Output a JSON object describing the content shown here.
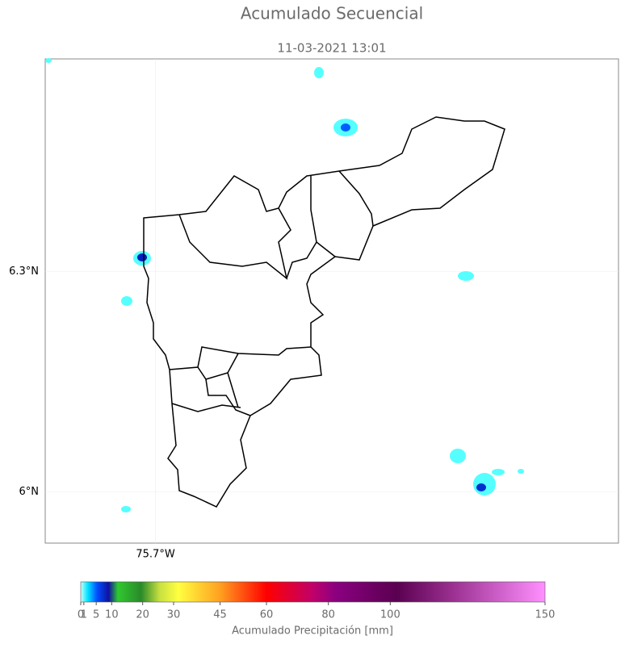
{
  "title": "Acumulado Secuencial",
  "subtitle": "11-03-2021 13:01",
  "map": {
    "xlim": [
      -75.85,
      -75.07
    ],
    "ylim": [
      5.93,
      6.59
    ],
    "lat_ticks": [
      {
        "value": 6.3,
        "label": "6.3°N"
      },
      {
        "value": 6.0,
        "label": "6°N"
      }
    ],
    "lon_ticks": [
      {
        "value": -75.7,
        "label": "75.7°W"
      }
    ]
  },
  "colorbar": {
    "label": "Acumulado Precipitación [mm]",
    "lim": [
      0,
      150
    ],
    "ticks": [
      0,
      1,
      5,
      10,
      20,
      30,
      45,
      60,
      80,
      100,
      150
    ]
  }
}
